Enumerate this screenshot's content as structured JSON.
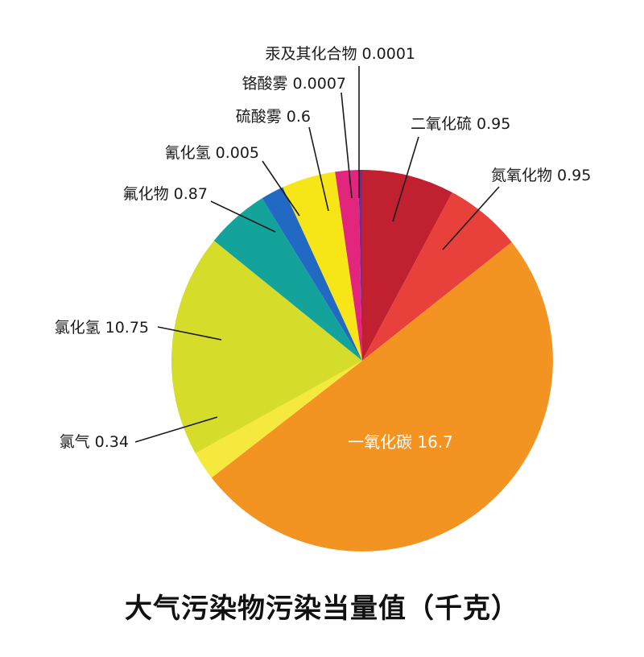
{
  "chart_data": {
    "type": "pie",
    "title": "大气污染物污染当量值（千克）",
    "unit": "千克",
    "slices": [
      {
        "label": "二氧化硫",
        "value": 0.95,
        "display": "二氧化硫 0.95",
        "color": "#c0202f"
      },
      {
        "label": "氮氧化物",
        "value": 0.95,
        "display": "氮氧化物 0.95",
        "color": "#e8403a"
      },
      {
        "label": "一氧化碳",
        "value": 16.7,
        "display": "一氧化碳 16.7",
        "color": "#f39321"
      },
      {
        "label": "氯气",
        "value": 0.34,
        "display": "氯气 0.34",
        "color": "#f4e93c"
      },
      {
        "label": "氯化氢",
        "value": 10.75,
        "display": "氯化氢 10.75",
        "color": "#d5dc2a"
      },
      {
        "label": "氟化物",
        "value": 0.87,
        "display": "氟化物 0.87",
        "color": "#13a39a"
      },
      {
        "label": "氰化氢",
        "value": 0.005,
        "display": "氰化氢 0.005",
        "color": "#2169c2"
      },
      {
        "label": "硫酸雾",
        "value": 0.6,
        "display": "硫酸雾 0.6",
        "color": "#f7e617"
      },
      {
        "label": "铬酸雾",
        "value": 0.0007,
        "display": "铬酸雾 0.0007",
        "color": "#e3257e"
      },
      {
        "label": "汞及其化合物",
        "value": 0.0001,
        "display": "汞及其化合物 0.0001",
        "color": "#7a2a8c"
      }
    ]
  }
}
